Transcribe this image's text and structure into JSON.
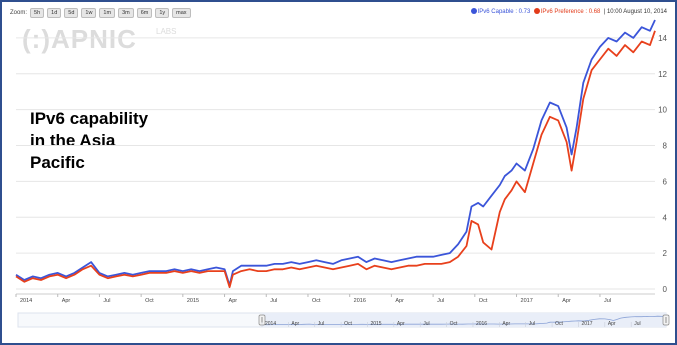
{
  "zoom": {
    "label": "Zoom:",
    "buttons": [
      "5h",
      "1d",
      "5d",
      "1w",
      "1m",
      "3m",
      "6m",
      "1y",
      "max"
    ]
  },
  "legend": {
    "capable": "IPv6 Capable : 0.73",
    "preference": "IPv6 Preference : 0.68",
    "timestamp": "10:00 August 10, 2014"
  },
  "logo": {
    "text": "(:)APNIC",
    "sub": "LABS"
  },
  "annotation": "IPv6 capability\nin the Asia\nPacific",
  "colors": {
    "capable": "#3b55d9",
    "preference": "#e8401c",
    "grid": "#e6e6e6",
    "frame": "#2f4f8f"
  },
  "chart_data": {
    "type": "line",
    "title": "",
    "xlabel": "",
    "ylabel": "",
    "xlim": [
      2014.0,
      2017.83
    ],
    "ylim": [
      0,
      15
    ],
    "yticks": [
      0,
      2,
      4,
      6,
      8,
      10,
      12,
      14
    ],
    "xticks": [
      {
        "x": 2014.0,
        "label": "2014"
      },
      {
        "x": 2014.25,
        "label": "Apr"
      },
      {
        "x": 2014.5,
        "label": "Jul"
      },
      {
        "x": 2014.75,
        "label": "Oct"
      },
      {
        "x": 2015.0,
        "label": "2015"
      },
      {
        "x": 2015.25,
        "label": "Apr"
      },
      {
        "x": 2015.5,
        "label": "Jul"
      },
      {
        "x": 2015.75,
        "label": "Oct"
      },
      {
        "x": 2016.0,
        "label": "2016"
      },
      {
        "x": 2016.25,
        "label": "Apr"
      },
      {
        "x": 2016.5,
        "label": "Jul"
      },
      {
        "x": 2016.75,
        "label": "Oct"
      },
      {
        "x": 2017.0,
        "label": "2017"
      },
      {
        "x": 2017.25,
        "label": "Apr"
      },
      {
        "x": 2017.5,
        "label": "Jul"
      }
    ],
    "navigator_ticks": [
      {
        "x": 2014.0,
        "label": "2014"
      },
      {
        "x": 2014.25,
        "label": "Apr"
      },
      {
        "x": 2014.5,
        "label": "Jul"
      },
      {
        "x": 2014.75,
        "label": "Oct"
      },
      {
        "x": 2015.0,
        "label": "2015"
      },
      {
        "x": 2015.25,
        "label": "Apr"
      },
      {
        "x": 2015.5,
        "label": "Jul"
      },
      {
        "x": 2015.75,
        "label": "Oct"
      },
      {
        "x": 2016.0,
        "label": "2016"
      },
      {
        "x": 2016.25,
        "label": "Apr"
      },
      {
        "x": 2016.5,
        "label": "Jul"
      },
      {
        "x": 2016.75,
        "label": "Oct"
      },
      {
        "x": 2017.0,
        "label": "2017"
      },
      {
        "x": 2017.25,
        "label": "Apr"
      },
      {
        "x": 2017.5,
        "label": "Jul"
      }
    ],
    "grid": true,
    "series": [
      {
        "name": "IPv6 Capable",
        "color": "#3b55d9",
        "x": [
          2014.0,
          2014.05,
          2014.1,
          2014.15,
          2014.2,
          2014.25,
          2014.3,
          2014.35,
          2014.4,
          2014.45,
          2014.5,
          2014.55,
          2014.6,
          2014.65,
          2014.7,
          2014.75,
          2014.8,
          2014.85,
          2014.9,
          2014.95,
          2015.0,
          2015.05,
          2015.1,
          2015.15,
          2015.2,
          2015.25,
          2015.28,
          2015.3,
          2015.35,
          2015.4,
          2015.45,
          2015.5,
          2015.55,
          2015.6,
          2015.65,
          2015.7,
          2015.75,
          2015.8,
          2015.85,
          2015.9,
          2015.95,
          2016.0,
          2016.05,
          2016.1,
          2016.15,
          2016.2,
          2016.25,
          2016.3,
          2016.35,
          2016.4,
          2016.45,
          2016.5,
          2016.55,
          2016.6,
          2016.65,
          2016.7,
          2016.73,
          2016.77,
          2016.8,
          2016.85,
          2016.9,
          2016.93,
          2016.97,
          2017.0,
          2017.05,
          2017.1,
          2017.15,
          2017.2,
          2017.25,
          2017.3,
          2017.33,
          2017.36,
          2017.4,
          2017.45,
          2017.5,
          2017.55,
          2017.6,
          2017.65,
          2017.7,
          2017.75,
          2017.8,
          2017.83
        ],
        "values": [
          0.8,
          0.5,
          0.7,
          0.6,
          0.8,
          0.9,
          0.7,
          0.9,
          1.2,
          1.5,
          0.9,
          0.7,
          0.8,
          0.9,
          0.8,
          0.9,
          1.0,
          1.0,
          1.0,
          1.1,
          1.0,
          1.1,
          1.0,
          1.1,
          1.2,
          1.1,
          0.2,
          1.0,
          1.3,
          1.3,
          1.3,
          1.3,
          1.4,
          1.4,
          1.5,
          1.4,
          1.5,
          1.6,
          1.5,
          1.4,
          1.6,
          1.7,
          1.8,
          1.5,
          1.7,
          1.6,
          1.5,
          1.6,
          1.7,
          1.8,
          1.8,
          1.8,
          1.9,
          2.0,
          2.5,
          3.2,
          4.6,
          4.8,
          4.6,
          5.2,
          5.8,
          6.3,
          6.6,
          7.0,
          6.6,
          7.8,
          9.4,
          10.4,
          10.2,
          9.0,
          7.5,
          9.0,
          11.5,
          12.8,
          13.5,
          14.0,
          13.8,
          14.3,
          14.0,
          14.6,
          14.4,
          15.0
        ]
      },
      {
        "name": "IPv6 Preference",
        "color": "#e8401c",
        "x": [
          2014.0,
          2014.05,
          2014.1,
          2014.15,
          2014.2,
          2014.25,
          2014.3,
          2014.35,
          2014.4,
          2014.45,
          2014.5,
          2014.55,
          2014.6,
          2014.65,
          2014.7,
          2014.75,
          2014.8,
          2014.85,
          2014.9,
          2014.95,
          2015.0,
          2015.05,
          2015.1,
          2015.15,
          2015.2,
          2015.25,
          2015.28,
          2015.3,
          2015.35,
          2015.4,
          2015.45,
          2015.5,
          2015.55,
          2015.6,
          2015.65,
          2015.7,
          2015.75,
          2015.8,
          2015.85,
          2015.9,
          2015.95,
          2016.0,
          2016.05,
          2016.1,
          2016.15,
          2016.2,
          2016.25,
          2016.3,
          2016.35,
          2016.4,
          2016.45,
          2016.5,
          2016.55,
          2016.6,
          2016.65,
          2016.7,
          2016.73,
          2016.77,
          2016.8,
          2016.85,
          2016.9,
          2016.93,
          2016.97,
          2017.0,
          2017.05,
          2017.1,
          2017.15,
          2017.2,
          2017.25,
          2017.3,
          2017.33,
          2017.36,
          2017.4,
          2017.45,
          2017.5,
          2017.55,
          2017.6,
          2017.65,
          2017.7,
          2017.75,
          2017.8,
          2017.83
        ],
        "values": [
          0.7,
          0.4,
          0.6,
          0.5,
          0.7,
          0.8,
          0.6,
          0.8,
          1.1,
          1.3,
          0.8,
          0.6,
          0.7,
          0.8,
          0.7,
          0.8,
          0.9,
          0.9,
          0.9,
          1.0,
          0.9,
          1.0,
          0.9,
          1.0,
          1.0,
          1.0,
          0.1,
          0.8,
          1.0,
          1.1,
          1.0,
          1.0,
          1.1,
          1.1,
          1.2,
          1.1,
          1.2,
          1.3,
          1.2,
          1.1,
          1.2,
          1.3,
          1.4,
          1.1,
          1.3,
          1.2,
          1.1,
          1.2,
          1.3,
          1.3,
          1.4,
          1.4,
          1.4,
          1.5,
          1.8,
          2.4,
          3.8,
          3.6,
          2.6,
          2.2,
          4.3,
          5.0,
          5.5,
          6.0,
          5.4,
          7.0,
          8.6,
          9.6,
          9.4,
          8.2,
          6.6,
          8.2,
          10.6,
          12.2,
          12.8,
          13.4,
          13.0,
          13.6,
          13.2,
          13.8,
          13.6,
          14.4
        ]
      }
    ]
  }
}
